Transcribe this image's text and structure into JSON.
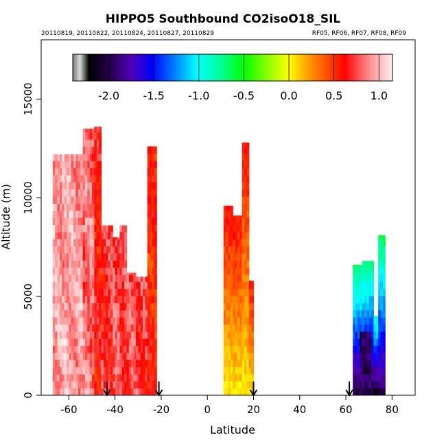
{
  "chart_data": {
    "type": "heatmap",
    "title": "HIPPO5 Southbound CO2isoO18_SIL",
    "subtitle_left": "20110819, 20110822, 20110824, 20110827, 20110829",
    "subtitle_right": "RF05, RF06, RF07, RF08, RF09",
    "xlabel": "Latitude",
    "ylabel": "Altitude (m)",
    "xlim": [
      -72,
      90
    ],
    "ylim": [
      0,
      18000
    ],
    "x_ticks": [
      -60,
      -40,
      -20,
      0,
      20,
      40,
      60,
      80
    ],
    "y_ticks": [
      0,
      5000,
      10000,
      15000
    ],
    "colorbar": {
      "range": [
        -2.4,
        1.15
      ],
      "ticks": [
        -2.0,
        -1.5,
        -1.0,
        -0.5,
        0.0,
        0.5,
        1.0
      ],
      "tick_labels": [
        "-2.0",
        "-1.5",
        "-1.0",
        "-0.5",
        "0.0",
        "0.5",
        "1.0"
      ]
    },
    "arrows_latitude": [
      -43.5,
      -21,
      20,
      61.5
    ],
    "columns": [
      {
        "x0": -67,
        "x1": -54,
        "top": 12200,
        "value": 0.95
      },
      {
        "x0": -54,
        "x1": -49,
        "top": 13500,
        "value": 0.85
      },
      {
        "x0": -49,
        "x1": -46,
        "top": 13600,
        "value": 0.6
      },
      {
        "x0": -46,
        "x1": -41,
        "top": 8600,
        "value": 0.7
      },
      {
        "x0": -41,
        "x1": -38,
        "top": 8000,
        "value": 0.78
      },
      {
        "x0": -38,
        "x1": -35,
        "top": 8600,
        "value": 0.72
      },
      {
        "x0": -35,
        "x1": -31,
        "top": 6200,
        "value": 0.76
      },
      {
        "x0": -31,
        "x1": -26,
        "top": 6000,
        "value": 0.74
      },
      {
        "x0": -26,
        "x1": -22,
        "top": 12600,
        "value": 0.55
      },
      {
        "x0": 7,
        "x1": 11,
        "top": 9600,
        "value": 0.42
      },
      {
        "x0": 11,
        "x1": 15,
        "top": 9100,
        "value": 0.45
      },
      {
        "x0": 15,
        "x1": 18,
        "top": 12800,
        "value": 0.5
      },
      {
        "x0": 18,
        "x1": 20,
        "top": 5800,
        "value": 0.5
      },
      {
        "x0": 63,
        "x1": 67,
        "top": 6600,
        "value": -0.65
      },
      {
        "x0": 67,
        "x1": 72,
        "top": 6800,
        "value": -0.68
      },
      {
        "x0": 72,
        "x1": 74,
        "top": 4000,
        "value": -0.75
      },
      {
        "x0": 74,
        "x1": 77,
        "top": 8100,
        "value": -0.6
      }
    ]
  }
}
